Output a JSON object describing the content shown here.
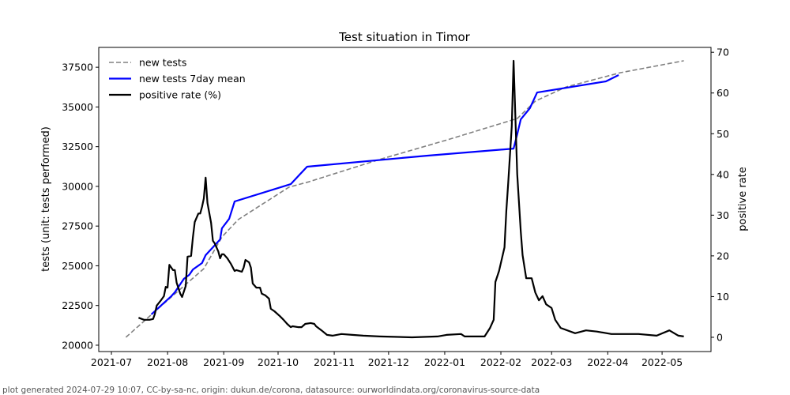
{
  "chart_data": {
    "type": "line",
    "title": "Test situation in Timor",
    "xlabel": "",
    "ylabel": "tests (unit: tests performed)",
    "y2label": "positive rate",
    "xlim": [
      "2021-06-24",
      "2022-05-28"
    ],
    "ylim": [
      19600,
      38750
    ],
    "y2lim": [
      -3.5,
      71.2
    ],
    "xticks": [
      "2021-07",
      "2021-08",
      "2021-09",
      "2021-10",
      "2021-11",
      "2021-12",
      "2022-01",
      "2022-02",
      "2022-03",
      "2022-04",
      "2022-05"
    ],
    "yticks": [
      20000,
      22500,
      25000,
      27500,
      30000,
      32500,
      35000,
      37500
    ],
    "y2ticks": [
      0,
      10,
      20,
      30,
      40,
      50,
      60,
      70
    ],
    "legend": {
      "placement": "top-left"
    },
    "series": [
      {
        "name": "new tests",
        "axis": "left",
        "color": "#808080",
        "style": "dashed",
        "points": [
          [
            "2021-07-09",
            20500
          ],
          [
            "2021-08-02",
            22930
          ],
          [
            "2021-08-21",
            24820
          ],
          [
            "2021-08-31",
            26810
          ],
          [
            "2021-09-09",
            27910
          ],
          [
            "2021-10-07",
            29950
          ],
          [
            "2021-10-18",
            30290
          ],
          [
            "2021-11-26",
            31690
          ],
          [
            "2022-01-01",
            32880
          ],
          [
            "2022-02-10",
            34270
          ],
          [
            "2022-02-20",
            35370
          ],
          [
            "2022-03-09",
            36260
          ],
          [
            "2022-04-08",
            37160
          ],
          [
            "2022-05-13",
            37910
          ]
        ]
      },
      {
        "name": "new tests 7day mean",
        "axis": "left",
        "color": "#0000ff",
        "style": "solid",
        "points": [
          [
            "2021-07-23",
            21940
          ],
          [
            "2021-08-03",
            23080
          ],
          [
            "2021-08-05",
            23330
          ],
          [
            "2021-08-10",
            24180
          ],
          [
            "2021-08-13",
            24430
          ],
          [
            "2021-08-15",
            24770
          ],
          [
            "2021-08-20",
            25170
          ],
          [
            "2021-08-22",
            25670
          ],
          [
            "2021-08-30",
            26660
          ],
          [
            "2021-08-31",
            27360
          ],
          [
            "2021-09-04",
            27960
          ],
          [
            "2021-09-07",
            29050
          ],
          [
            "2021-10-08",
            30140
          ],
          [
            "2021-10-17",
            31240
          ],
          [
            "2021-12-22",
            31930
          ],
          [
            "2022-02-08",
            32380
          ],
          [
            "2022-02-10",
            33280
          ],
          [
            "2022-02-12",
            34220
          ],
          [
            "2022-02-17",
            34920
          ],
          [
            "2022-02-21",
            35910
          ],
          [
            "2022-03-31",
            36610
          ],
          [
            "2022-04-07",
            37010
          ]
        ]
      },
      {
        "name": "positive rate (%)",
        "axis": "right",
        "color": "#000000",
        "style": "solid",
        "points": [
          [
            "2021-07-16",
            4.8
          ],
          [
            "2021-07-19",
            4.3
          ],
          [
            "2021-07-22",
            4.3
          ],
          [
            "2021-07-24",
            4.5
          ],
          [
            "2021-07-25",
            5.8
          ],
          [
            "2021-07-26",
            7.8
          ],
          [
            "2021-07-28",
            8.9
          ],
          [
            "2021-07-30",
            10.1
          ],
          [
            "2021-07-31",
            12.4
          ],
          [
            "2021-08-01",
            12.2
          ],
          [
            "2021-08-02",
            17.8
          ],
          [
            "2021-08-04",
            16.5
          ],
          [
            "2021-08-05",
            16.5
          ],
          [
            "2021-08-06",
            13.4
          ],
          [
            "2021-08-08",
            10.7
          ],
          [
            "2021-08-09",
            9.9
          ],
          [
            "2021-08-11",
            12.6
          ],
          [
            "2021-08-12",
            19.8
          ],
          [
            "2021-08-14",
            20.0
          ],
          [
            "2021-08-15",
            24.6
          ],
          [
            "2021-08-16",
            28.3
          ],
          [
            "2021-08-18",
            30.4
          ],
          [
            "2021-08-19",
            30.4
          ],
          [
            "2021-08-20",
            32.0
          ],
          [
            "2021-08-21",
            34.1
          ],
          [
            "2021-08-22",
            39.2
          ],
          [
            "2021-08-23",
            33.0
          ],
          [
            "2021-08-25",
            28.1
          ],
          [
            "2021-08-26",
            23.7
          ],
          [
            "2021-08-27",
            23.1
          ],
          [
            "2021-08-29",
            21.1
          ],
          [
            "2021-08-30",
            19.4
          ],
          [
            "2021-08-31",
            20.4
          ],
          [
            "2021-09-01",
            20.4
          ],
          [
            "2021-09-03",
            19.4
          ],
          [
            "2021-09-05",
            18.0
          ],
          [
            "2021-09-07",
            16.3
          ],
          [
            "2021-09-08",
            16.5
          ],
          [
            "2021-09-11",
            16.1
          ],
          [
            "2021-09-12",
            17.1
          ],
          [
            "2021-09-13",
            19.0
          ],
          [
            "2021-09-15",
            18.4
          ],
          [
            "2021-09-16",
            17.1
          ],
          [
            "2021-09-17",
            13.2
          ],
          [
            "2021-09-19",
            12.2
          ],
          [
            "2021-09-21",
            12.2
          ],
          [
            "2021-09-22",
            10.7
          ],
          [
            "2021-09-24",
            10.3
          ],
          [
            "2021-09-26",
            9.5
          ],
          [
            "2021-09-27",
            7.0
          ],
          [
            "2021-09-29",
            6.4
          ],
          [
            "2021-10-02",
            5.2
          ],
          [
            "2021-10-04",
            4.3
          ],
          [
            "2021-10-06",
            3.3
          ],
          [
            "2021-10-08",
            2.5
          ],
          [
            "2021-10-09",
            2.7
          ],
          [
            "2021-10-12",
            2.5
          ],
          [
            "2021-10-14",
            2.5
          ],
          [
            "2021-10-16",
            3.3
          ],
          [
            "2021-10-19",
            3.5
          ],
          [
            "2021-10-21",
            3.3
          ],
          [
            "2021-10-22",
            2.7
          ],
          [
            "2021-10-25",
            1.7
          ],
          [
            "2021-10-28",
            0.6
          ],
          [
            "2021-10-31",
            0.4
          ],
          [
            "2021-11-05",
            0.8
          ],
          [
            "2021-11-11",
            0.6
          ],
          [
            "2021-11-17",
            0.4
          ],
          [
            "2021-11-26",
            0.2
          ],
          [
            "2021-12-14",
            0.0
          ],
          [
            "2021-12-28",
            0.2
          ],
          [
            "2022-01-02",
            0.6
          ],
          [
            "2022-01-10",
            0.8
          ],
          [
            "2022-01-12",
            0.2
          ],
          [
            "2022-01-23",
            0.2
          ],
          [
            "2022-01-26",
            2.3
          ],
          [
            "2022-01-28",
            4.3
          ],
          [
            "2022-01-29",
            13.6
          ],
          [
            "2022-01-31",
            16.3
          ],
          [
            "2022-02-03",
            22.1
          ],
          [
            "2022-02-04",
            31.0
          ],
          [
            "2022-02-05",
            37.6
          ],
          [
            "2022-02-07",
            51.8
          ],
          [
            "2022-02-08",
            67.9
          ],
          [
            "2022-02-10",
            40.1
          ],
          [
            "2022-02-12",
            26.0
          ],
          [
            "2022-02-13",
            20.2
          ],
          [
            "2022-02-15",
            14.5
          ],
          [
            "2022-02-18",
            14.5
          ],
          [
            "2022-02-20",
            11.0
          ],
          [
            "2022-02-22",
            9.1
          ],
          [
            "2022-02-24",
            10.1
          ],
          [
            "2022-02-26",
            8.1
          ],
          [
            "2022-03-01",
            7.2
          ],
          [
            "2022-03-03",
            4.3
          ],
          [
            "2022-03-06",
            2.3
          ],
          [
            "2022-03-14",
            1.0
          ],
          [
            "2022-03-20",
            1.7
          ],
          [
            "2022-03-26",
            1.4
          ],
          [
            "2022-04-03",
            0.8
          ],
          [
            "2022-04-18",
            0.8
          ],
          [
            "2022-04-28",
            0.4
          ],
          [
            "2022-05-05",
            1.7
          ],
          [
            "2022-05-10",
            0.4
          ],
          [
            "2022-05-13",
            0.2
          ]
        ]
      }
    ]
  },
  "footer": "plot generated 2024-07-29 10:07, CC-by-sa-nc, origin: dukun.de/corona, datasource: ourworldindata.org/coronavirus-source-data"
}
